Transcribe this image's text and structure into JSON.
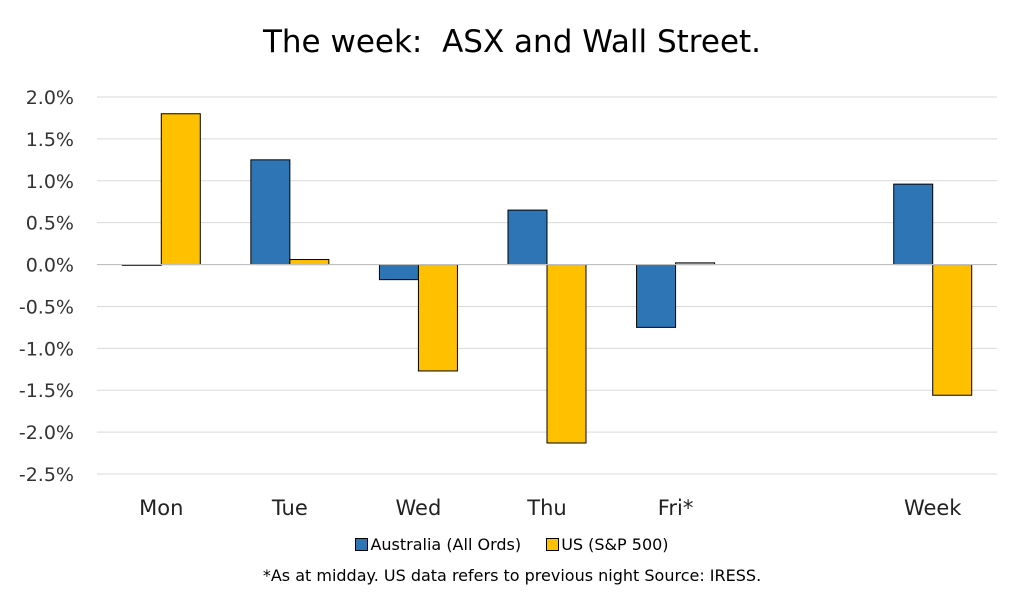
{
  "colors": {
    "australia": "#2E75B6",
    "us": "#FFC000",
    "grid": "#D9D9D9",
    "zero": "#BFBFBF"
  },
  "legend": {
    "australia_label": "Australia (All Ords)",
    "us_label": "US (S&P 500)"
  },
  "footnote": "*As at midday. US data refers to previous night  Source:  IRESS.",
  "chart_data": {
    "type": "bar",
    "title": "The week:  ASX and Wall Street.",
    "xlabel": "",
    "ylabel": "",
    "categories": [
      "Mon",
      "Tue",
      "Wed",
      "Thu",
      "Fri*",
      "",
      "Week"
    ],
    "series": [
      {
        "name": "Australia (All Ords)",
        "color": "#2E75B6",
        "values": [
          0,
          1.25,
          -0.18,
          0.65,
          -0.75,
          null,
          0.96
        ]
      },
      {
        "name": "US (S&P 500)",
        "color": "#FFC000",
        "values": [
          1.8,
          0.06,
          -1.27,
          -2.13,
          0.02,
          null,
          -1.56
        ]
      }
    ],
    "ylim": [
      -2.5,
      2.0
    ],
    "yticks": [
      2.0,
      1.5,
      1.0,
      0.5,
      0.0,
      -0.5,
      -1.0,
      -1.5,
      -2.0,
      -2.5
    ],
    "ytick_labels": [
      "2.0%",
      "1.5%",
      "1.0%",
      "0.5%",
      "0.0%",
      "-0.5%",
      "-1.0%",
      "-1.5%",
      "-2.0%",
      "-2.5%"
    ],
    "grid": true,
    "legend_position": "bottom"
  }
}
